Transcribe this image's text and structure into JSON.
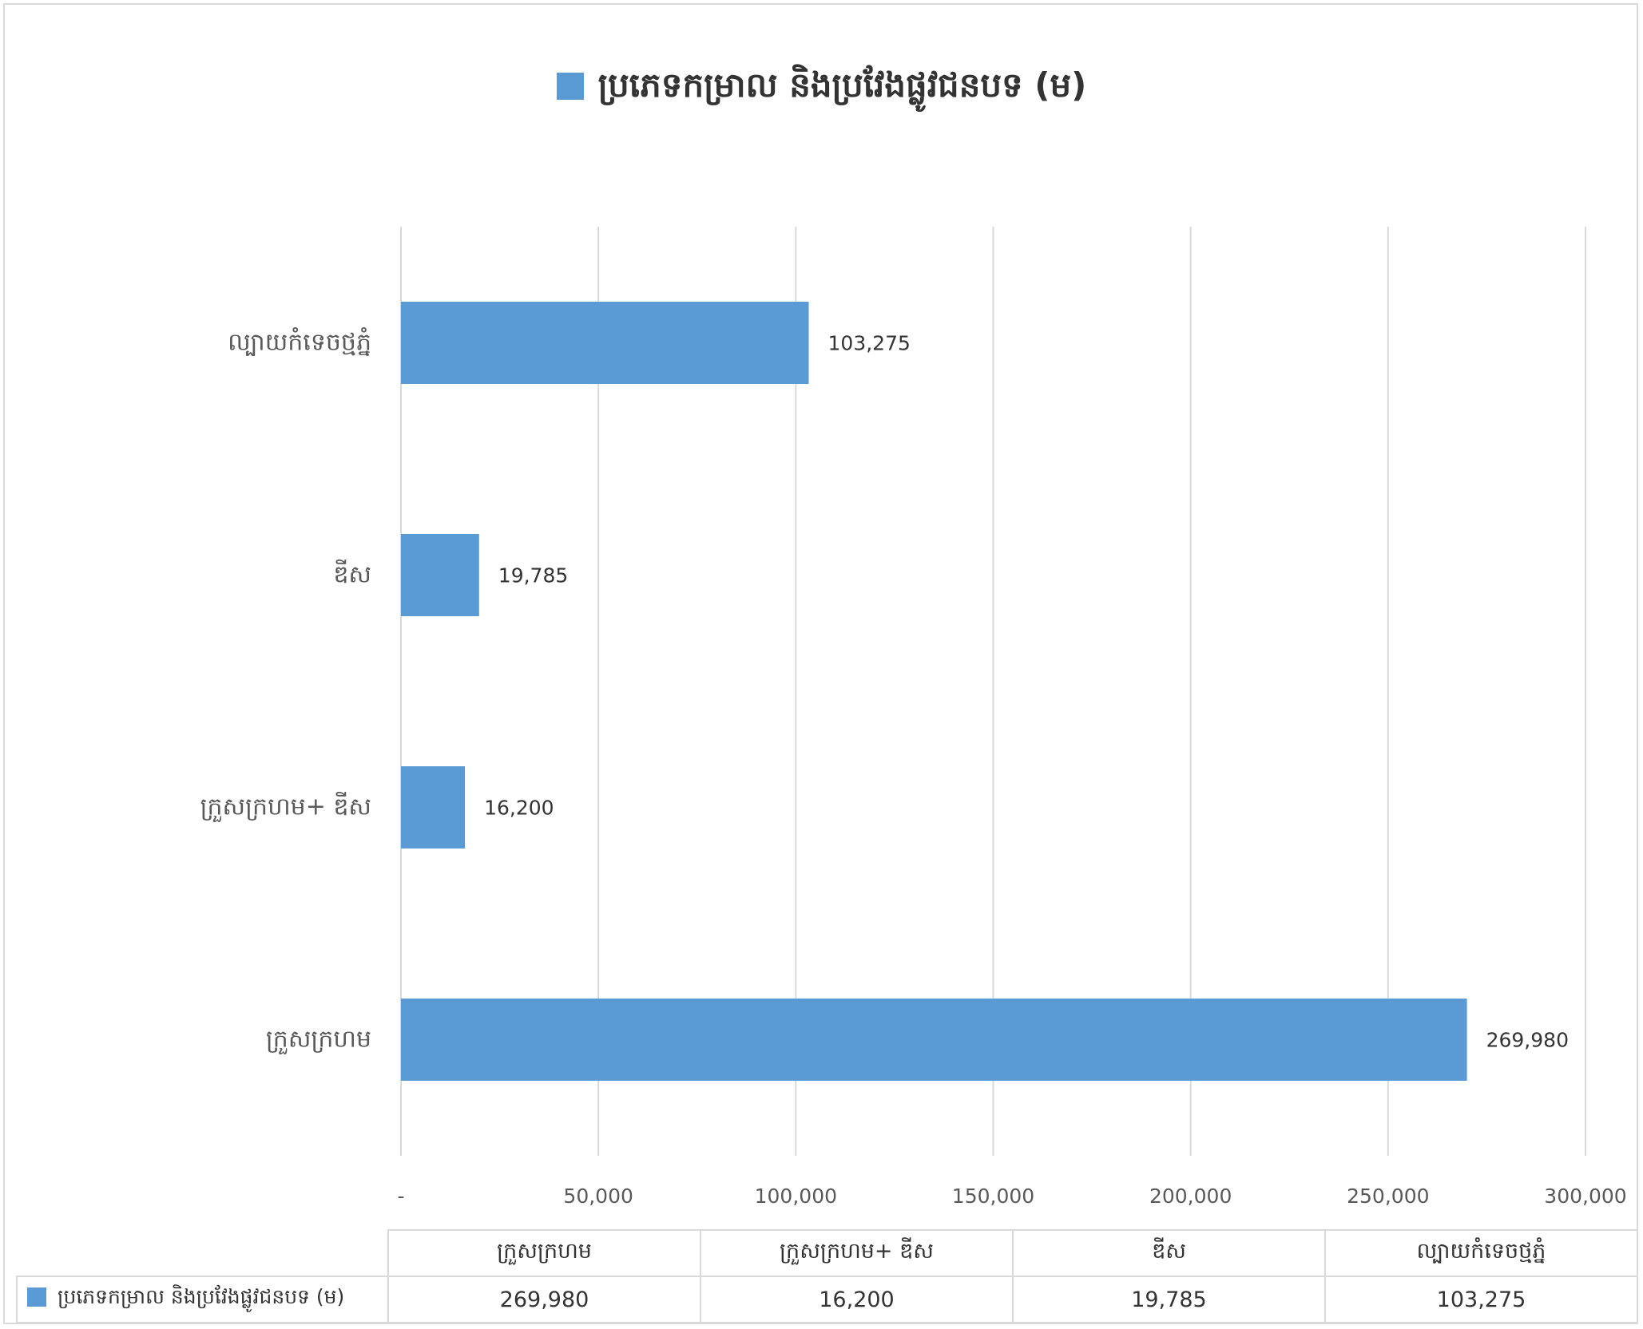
{
  "chart_data": {
    "type": "bar",
    "orientation": "horizontal",
    "title": "ប្រភេទកម្រាល និងប្រវែងផ្លូវជនបទ (ម)",
    "categories": [
      "ក្រួសក្រហម",
      "ក្រួសក្រហម+ ឌីស",
      "ឌីស",
      "ល្បាយកំទេចថ្មភ្នំ"
    ],
    "series": [
      {
        "name": "ប្រភេទកម្រាល និងប្រវែងផ្លូវជនបទ (ម)",
        "values": [
          269980,
          16200,
          19785,
          103275
        ],
        "color": "#5b9bd5"
      }
    ],
    "value_labels": [
      "269,980",
      "16,200",
      "19,785",
      "103,275"
    ],
    "xlim": [
      0,
      300000
    ],
    "x_ticks": [
      {
        "value": 0,
        "label": "-"
      },
      {
        "value": 50000,
        "label": "50,000"
      },
      {
        "value": 100000,
        "label": "100,000"
      },
      {
        "value": 150000,
        "label": "150,000"
      },
      {
        "value": 200000,
        "label": "200,000"
      },
      {
        "value": 250000,
        "label": "250,000"
      },
      {
        "value": 300000,
        "label": "300,000"
      }
    ],
    "grid": true,
    "legend": "top",
    "data_table": true
  }
}
